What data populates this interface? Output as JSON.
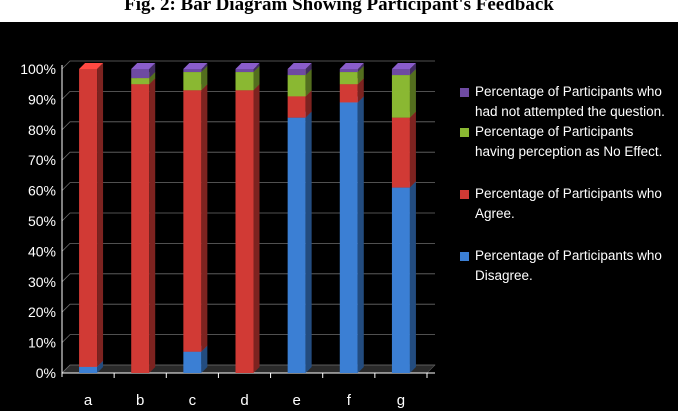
{
  "title": "Fig. 2: Bar Diagram Showing Participant's Feedback",
  "chart_data": {
    "type": "bar",
    "stacked": true,
    "categories": [
      "a",
      "b",
      "c",
      "d",
      "e",
      "f",
      "g"
    ],
    "yticks": [
      "0%",
      "10%",
      "20%",
      "30%",
      "40%",
      "50%",
      "60%",
      "70%",
      "80%",
      "90%",
      "100%"
    ],
    "ylim": [
      0,
      100
    ],
    "grid": true,
    "legend_position": "right",
    "series": [
      {
        "name": "Percentage of Participants who Disagree.",
        "color": "#3b7fd4",
        "values": [
          2,
          0,
          7,
          0,
          84,
          89,
          61
        ]
      },
      {
        "name": "Percentage of Participants who Agree.",
        "color": "#d13a35",
        "values": [
          98,
          95,
          86,
          93,
          7,
          6,
          23
        ]
      },
      {
        "name": "Percentage of Participants having perception as No Effect.",
        "color": "#8ab832",
        "values": [
          0,
          2,
          6,
          6,
          7,
          4,
          14
        ]
      },
      {
        "name": "Percentage of  Participants who had not attempted the question.",
        "color": "#6e4aa2",
        "values": [
          0,
          3,
          1,
          1,
          2,
          1,
          2
        ]
      }
    ]
  }
}
